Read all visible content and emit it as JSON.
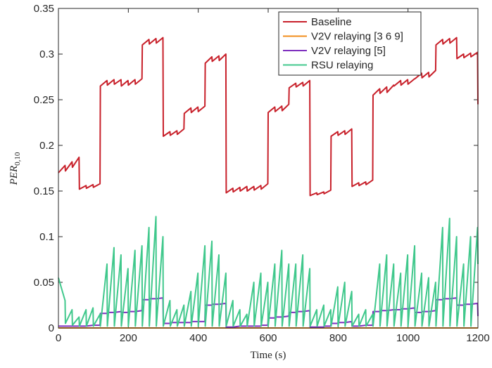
{
  "chart_data": {
    "type": "line",
    "xlabel": "Time (s)",
    "ylabel": {
      "text": "PER",
      "subscript": "0,10"
    },
    "xlim": [
      0,
      1200
    ],
    "xticks": [
      0,
      200,
      400,
      600,
      800,
      1000,
      1200
    ],
    "ylim": [
      0,
      0.35
    ],
    "yticks": [
      0,
      0.05,
      0.1,
      0.15,
      0.2,
      0.25,
      0.3,
      0.35
    ],
    "grid": false,
    "legend": "top-right",
    "x": [
      0,
      19,
      20,
      39,
      40,
      59,
      60,
      79,
      80,
      99,
      100,
      119,
      120,
      139,
      140,
      159,
      160,
      179,
      180,
      199,
      200,
      219,
      220,
      239,
      240,
      259,
      260,
      279,
      280,
      299,
      300,
      319,
      320,
      339,
      340,
      359,
      360,
      379,
      380,
      399,
      400,
      419,
      420,
      439,
      440,
      459,
      460,
      479,
      480,
      499,
      500,
      519,
      520,
      539,
      540,
      559,
      560,
      579,
      580,
      599,
      600,
      619,
      620,
      639,
      640,
      659,
      660,
      679,
      680,
      699,
      700,
      719,
      720,
      739,
      740,
      759,
      760,
      779,
      780,
      799,
      800,
      819,
      820,
      839,
      840,
      859,
      860,
      879,
      880,
      899,
      900,
      919,
      920,
      939,
      940,
      959,
      960,
      979,
      980,
      999,
      1000,
      1019,
      1020,
      1039,
      1040,
      1059,
      1060,
      1079,
      1080,
      1099,
      1100,
      1119,
      1120,
      1139,
      1140,
      1159,
      1160,
      1179,
      1180,
      1199,
      1200
    ],
    "series": [
      {
        "name": "Baseline",
        "color": "#c8202a",
        "values": [
          0.17,
          0.178,
          0.172,
          0.182,
          0.176,
          0.187,
          0.152,
          0.156,
          0.153,
          0.157,
          0.154,
          0.158,
          0.265,
          0.271,
          0.266,
          0.272,
          0.267,
          0.272,
          0.265,
          0.271,
          0.266,
          0.272,
          0.267,
          0.273,
          0.31,
          0.316,
          0.311,
          0.317,
          0.312,
          0.318,
          0.21,
          0.215,
          0.211,
          0.216,
          0.212,
          0.218,
          0.235,
          0.241,
          0.236,
          0.242,
          0.237,
          0.243,
          0.29,
          0.297,
          0.292,
          0.298,
          0.293,
          0.3,
          0.148,
          0.153,
          0.149,
          0.154,
          0.15,
          0.155,
          0.15,
          0.155,
          0.151,
          0.156,
          0.152,
          0.158,
          0.236,
          0.242,
          0.237,
          0.243,
          0.238,
          0.245,
          0.263,
          0.268,
          0.264,
          0.269,
          0.265,
          0.271,
          0.145,
          0.148,
          0.146,
          0.149,
          0.147,
          0.151,
          0.21,
          0.215,
          0.211,
          0.216,
          0.212,
          0.218,
          0.155,
          0.159,
          0.156,
          0.16,
          0.157,
          0.162,
          0.255,
          0.262,
          0.257,
          0.264,
          0.258,
          0.266,
          0.265,
          0.271,
          0.266,
          0.272,
          0.267,
          0.273,
          0.273,
          0.279,
          0.274,
          0.28,
          0.275,
          0.282,
          0.31,
          0.316,
          0.311,
          0.317,
          0.312,
          0.318,
          0.295,
          0.3,
          0.296,
          0.301,
          0.297,
          0.302,
          0.245
        ]
      },
      {
        "name": "V2V relaying [3 6 9]",
        "color": "#f28e1c",
        "values": [
          0,
          0,
          0,
          0,
          0,
          0,
          0,
          0,
          0,
          0,
          0,
          0,
          0,
          0,
          0,
          0,
          0,
          0,
          0,
          0,
          0,
          0,
          0,
          0,
          0,
          0,
          0,
          0,
          0,
          0,
          0,
          0,
          0,
          0,
          0,
          0,
          0,
          0,
          0,
          0,
          0,
          0,
          0,
          0,
          0,
          0,
          0,
          0,
          0,
          0,
          0,
          0,
          0,
          0,
          0,
          0,
          0,
          0,
          0,
          0,
          0,
          0,
          0,
          0,
          0,
          0,
          0,
          0,
          0,
          0,
          0,
          0,
          0,
          0,
          0,
          0,
          0,
          0,
          0,
          0,
          0,
          0,
          0,
          0,
          0,
          0,
          0,
          0,
          0,
          0,
          0,
          0,
          0,
          0,
          0,
          0,
          0,
          0,
          0,
          0,
          0,
          0,
          0,
          0,
          0,
          0,
          0,
          0,
          0,
          0,
          0,
          0,
          0,
          0,
          0,
          0,
          0,
          0,
          0,
          0,
          0
        ]
      },
      {
        "name": "V2V relaying [5]",
        "color": "#7e2fbe",
        "values": [
          0.002,
          0.002,
          0.002,
          0.002,
          0.002,
          0.002,
          0.002,
          0.002,
          0.002,
          0.003,
          0.003,
          0.003,
          0.016,
          0.016,
          0.017,
          0.017,
          0.017,
          0.018,
          0.017,
          0.017,
          0.018,
          0.018,
          0.018,
          0.019,
          0.031,
          0.031,
          0.032,
          0.032,
          0.032,
          0.033,
          0.005,
          0.005,
          0.006,
          0.006,
          0.006,
          0.006,
          0.006,
          0.006,
          0.007,
          0.007,
          0.007,
          0.007,
          0.025,
          0.025,
          0.026,
          0.026,
          0.026,
          0.027,
          0.001,
          0.001,
          0.001,
          0.002,
          0.002,
          0.002,
          0.002,
          0.002,
          0.002,
          0.002,
          0.003,
          0.003,
          0.011,
          0.011,
          0.012,
          0.012,
          0.012,
          0.013,
          0.017,
          0.017,
          0.018,
          0.018,
          0.018,
          0.019,
          0.001,
          0.001,
          0.001,
          0.001,
          0.002,
          0.002,
          0.005,
          0.005,
          0.006,
          0.006,
          0.006,
          0.007,
          0.002,
          0.002,
          0.002,
          0.003,
          0.003,
          0.003,
          0.018,
          0.018,
          0.019,
          0.019,
          0.019,
          0.02,
          0.02,
          0.02,
          0.021,
          0.021,
          0.021,
          0.022,
          0.017,
          0.017,
          0.018,
          0.018,
          0.018,
          0.019,
          0.031,
          0.031,
          0.032,
          0.032,
          0.032,
          0.033,
          0.025,
          0.025,
          0.026,
          0.026,
          0.026,
          0.027,
          0.013
        ]
      },
      {
        "name": "RSU relaying",
        "color": "#40c88c",
        "values": [
          0.055,
          0.03,
          0.005,
          0.02,
          0.003,
          0.012,
          0.002,
          0.02,
          0.002,
          0.022,
          0.002,
          0.015,
          0.002,
          0.07,
          0.002,
          0.088,
          0.002,
          0.08,
          0.002,
          0.065,
          0.002,
          0.085,
          0.002,
          0.09,
          0.002,
          0.11,
          0.002,
          0.122,
          0.002,
          0.1,
          0.002,
          0.03,
          0.002,
          0.02,
          0.002,
          0.025,
          0.002,
          0.04,
          0.002,
          0.06,
          0.002,
          0.09,
          0.002,
          0.095,
          0.002,
          0.08,
          0.002,
          0.06,
          0.002,
          0.03,
          0.002,
          0.02,
          0.002,
          0.015,
          0.002,
          0.05,
          0.002,
          0.06,
          0.002,
          0.05,
          0.002,
          0.07,
          0.002,
          0.085,
          0.002,
          0.07,
          0.002,
          0.07,
          0.002,
          0.08,
          0.002,
          0.065,
          0.002,
          0.02,
          0.002,
          0.025,
          0.002,
          0.02,
          0.002,
          0.045,
          0.002,
          0.05,
          0.002,
          0.04,
          0.002,
          0.015,
          0.002,
          0.02,
          0.002,
          0.015,
          0.002,
          0.07,
          0.002,
          0.08,
          0.002,
          0.07,
          0.002,
          0.06,
          0.002,
          0.08,
          0.002,
          0.09,
          0.002,
          0.06,
          0.002,
          0.055,
          0.002,
          0.05,
          0.002,
          0.11,
          0.002,
          0.12,
          0.002,
          0.1,
          0.002,
          0.07,
          0.002,
          0.1,
          0.002,
          0.11,
          0.07
        ]
      }
    ]
  }
}
